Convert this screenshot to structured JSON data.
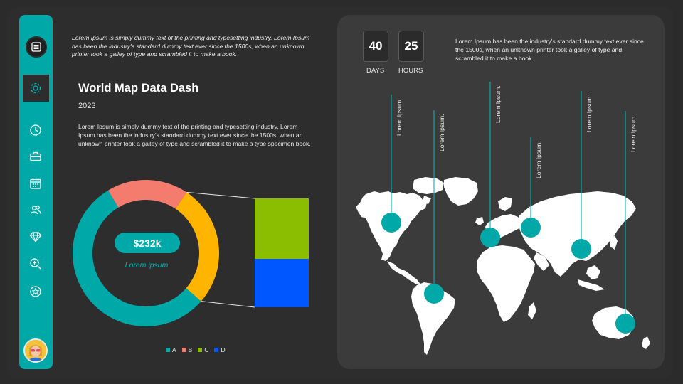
{
  "intro": "Lorem Ipsum is simply dummy text of the printing and typesetting industry. Lorem Ipsum has been the industry's standard dummy text ever since the 1500s, when an unknown printer took a galley of type and scrambled it to make a book.",
  "title": "World Map Data Dash",
  "year": "2023",
  "description": "Lorem Ipsum is simply dummy text of the printing and typesetting industry. Lorem Ipsum has been the industry's standard dummy text ever since the 1500s, when an unknown printer took a galley of type and scrambled it to make a type specimen book.",
  "center_value": "$232k",
  "center_caption": "Lorem ipsum",
  "countdown": {
    "days_value": "40",
    "days_label": "DAYS",
    "hours_value": "25",
    "hours_label": "HOURS"
  },
  "map_text": "Lorem Ipsum has been the industry's standard dummy text ever since the 1500s, when an unknown printer took a galley  of type and scrambled it to make a book.",
  "map_pins": [
    {
      "label": "Lorem Ipsum."
    },
    {
      "label": "Lorem Ipsum."
    },
    {
      "label": "Lorem Ipsum."
    },
    {
      "label": "Lorem Ipsum."
    },
    {
      "label": "Lorem Ipsum."
    },
    {
      "label": "Lorem Ipsum."
    }
  ],
  "sidebar_icons": [
    "gear-icon",
    "clock-icon",
    "toolbox-icon",
    "calendar-icon",
    "users-icon",
    "diamond-icon",
    "zoom-icon",
    "star-icon"
  ],
  "colors": {
    "accent": "#00a8a8",
    "A": "#00a8a8",
    "B": "#f47c6e",
    "C": "#8bbd00",
    "D": "#0057ff",
    "highlight": "#ffb400"
  },
  "chart_data": {
    "type": "pie",
    "categories": [
      "A",
      "B",
      "C",
      "D"
    ],
    "values": [
      55,
      18,
      15,
      12
    ],
    "legend": [
      "A",
      "B",
      "C",
      "D"
    ],
    "legend_position": "bottom"
  }
}
